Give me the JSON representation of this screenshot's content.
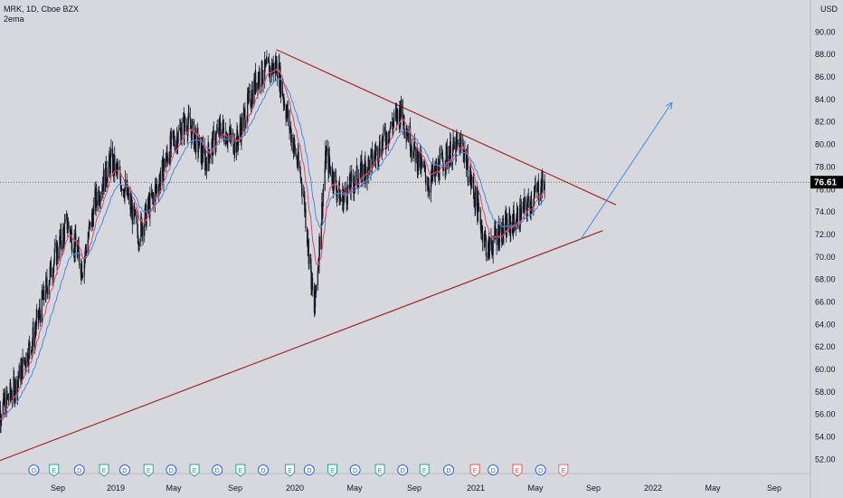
{
  "header": {
    "symbol_line": "MRK, 1D, Cboe BZX",
    "indicator": "2ema"
  },
  "colors": {
    "background": "#d6d8de",
    "candle": "#131722",
    "ema_fast": "#e0456a",
    "ema_slow": "#4a8ae0",
    "trendline": "#a52a2a",
    "arrow": "#4a8ae0",
    "price_tag_bg": "#000000",
    "event_dividend": "#2962ff",
    "event_earnings_green": "#26a69a",
    "event_earnings_red": "#ef5350"
  },
  "chart_data": {
    "type": "candlestick",
    "title": "MRK, 1D, Cboe BZX",
    "ylabel": "USD",
    "ylim": [
      50.5,
      93
    ],
    "yticks": [
      "52.00",
      "54.00",
      "56.00",
      "58.00",
      "60.00",
      "62.00",
      "64.00",
      "66.00",
      "68.00",
      "70.00",
      "72.00",
      "74.00",
      "76.00",
      "78.00",
      "80.00",
      "82.00",
      "84.00",
      "86.00",
      "88.00",
      "90.00"
    ],
    "xticks": [
      "Sep",
      "2019",
      "May",
      "Sep",
      "2020",
      "May",
      "Sep",
      "2021",
      "May",
      "Sep",
      "2022",
      "May",
      "Sep"
    ],
    "last_price": "76.61",
    "series": [
      {
        "name": "2ema",
        "kind": "ema-fast"
      },
      {
        "name": "2ema",
        "kind": "ema-slow"
      }
    ],
    "price_anchors": [
      {
        "t": "2018-07-01",
        "p": 55.5
      },
      {
        "t": "2018-08-10",
        "p": 58.5
      },
      {
        "t": "2018-09-15",
        "p": 63
      },
      {
        "t": "2018-10-20",
        "p": 69
      },
      {
        "t": "2018-11-20",
        "p": 73
      },
      {
        "t": "2018-12-20",
        "p": 69
      },
      {
        "t": "2019-01-15",
        "p": 75
      },
      {
        "t": "2019-02-15",
        "p": 78.5
      },
      {
        "t": "2019-03-15",
        "p": 76
      },
      {
        "t": "2019-04-10",
        "p": 72
      },
      {
        "t": "2019-05-15",
        "p": 76
      },
      {
        "t": "2019-06-15",
        "p": 80
      },
      {
        "t": "2019-07-15",
        "p": 82
      },
      {
        "t": "2019-08-20",
        "p": 78.5
      },
      {
        "t": "2019-09-20",
        "p": 81.5
      },
      {
        "t": "2019-10-20",
        "p": 80
      },
      {
        "t": "2019-12-01",
        "p": 86
      },
      {
        "t": "2020-01-10",
        "p": 87
      },
      {
        "t": "2020-02-01",
        "p": 82
      },
      {
        "t": "2020-03-01",
        "p": 76
      },
      {
        "t": "2020-03-23",
        "p": 65
      },
      {
        "t": "2020-04-15",
        "p": 79
      },
      {
        "t": "2020-05-15",
        "p": 75
      },
      {
        "t": "2020-06-15",
        "p": 77
      },
      {
        "t": "2020-07-15",
        "p": 78.5
      },
      {
        "t": "2020-08-15",
        "p": 81
      },
      {
        "t": "2020-09-10",
        "p": 83
      },
      {
        "t": "2020-10-10",
        "p": 79
      },
      {
        "t": "2020-11-05",
        "p": 76.5
      },
      {
        "t": "2020-12-10",
        "p": 79
      },
      {
        "t": "2021-01-10",
        "p": 80
      },
      {
        "t": "2021-02-05",
        "p": 75
      },
      {
        "t": "2021-03-01",
        "p": 70.5
      },
      {
        "t": "2021-03-20",
        "p": 72
      },
      {
        "t": "2021-04-20",
        "p": 73
      },
      {
        "t": "2021-05-20",
        "p": 74.5
      },
      {
        "t": "2021-06-10",
        "p": 76
      },
      {
        "t": "2021-06-22",
        "p": 76.61
      }
    ],
    "trendlines": [
      {
        "name": "upper resistance",
        "x1": "2020-01-08",
        "y1": 88.4,
        "x2": "2021-11-10",
        "y2": 74.6
      },
      {
        "name": "lower support",
        "x1": "2018-06-25",
        "y1": 51.6,
        "x2": "2021-10-15",
        "y2": 72.3
      }
    ],
    "projection_arrow": {
      "x1": "2021-09-01",
      "y1": 71.5,
      "x2": "2022-03-01",
      "y2": 83.7
    },
    "events": [
      {
        "t": "2018-09-15",
        "label": "D",
        "kind": "dividend"
      },
      {
        "t": "2018-10-25",
        "label": "E",
        "kind": "earnings-green"
      },
      {
        "t": "2018-12-14",
        "label": "D",
        "kind": "dividend"
      },
      {
        "t": "2019-02-01",
        "label": "E",
        "kind": "earnings-green"
      },
      {
        "t": "2019-03-14",
        "label": "D",
        "kind": "dividend"
      },
      {
        "t": "2019-04-30",
        "label": "E",
        "kind": "earnings-green"
      },
      {
        "t": "2019-06-14",
        "label": "D",
        "kind": "dividend"
      },
      {
        "t": "2019-07-30",
        "label": "E",
        "kind": "earnings-green"
      },
      {
        "t": "2019-09-13",
        "label": "D",
        "kind": "dividend"
      },
      {
        "t": "2019-10-29",
        "label": "E",
        "kind": "earnings-green"
      },
      {
        "t": "2019-12-13",
        "label": "D",
        "kind": "dividend"
      },
      {
        "t": "2020-02-04",
        "label": "E",
        "kind": "earnings-green"
      },
      {
        "t": "2020-03-13",
        "label": "D",
        "kind": "dividend"
      },
      {
        "t": "2020-04-28",
        "label": "E",
        "kind": "earnings-green"
      },
      {
        "t": "2020-06-12",
        "label": "D",
        "kind": "dividend"
      },
      {
        "t": "2020-07-31",
        "label": "E",
        "kind": "earnings-green"
      },
      {
        "t": "2020-09-14",
        "label": "D",
        "kind": "dividend"
      },
      {
        "t": "2020-10-27",
        "label": "E",
        "kind": "earnings-green"
      },
      {
        "t": "2020-12-14",
        "label": "D",
        "kind": "dividend"
      },
      {
        "t": "2021-02-04",
        "label": "E",
        "kind": "earnings-red"
      },
      {
        "t": "2021-03-12",
        "label": "D",
        "kind": "dividend"
      },
      {
        "t": "2021-04-29",
        "label": "E",
        "kind": "earnings-red"
      },
      {
        "t": "2021-06-14",
        "label": "D",
        "kind": "dividend"
      },
      {
        "t": "2021-07-29",
        "label": "E",
        "kind": "earnings-outline"
      }
    ]
  }
}
